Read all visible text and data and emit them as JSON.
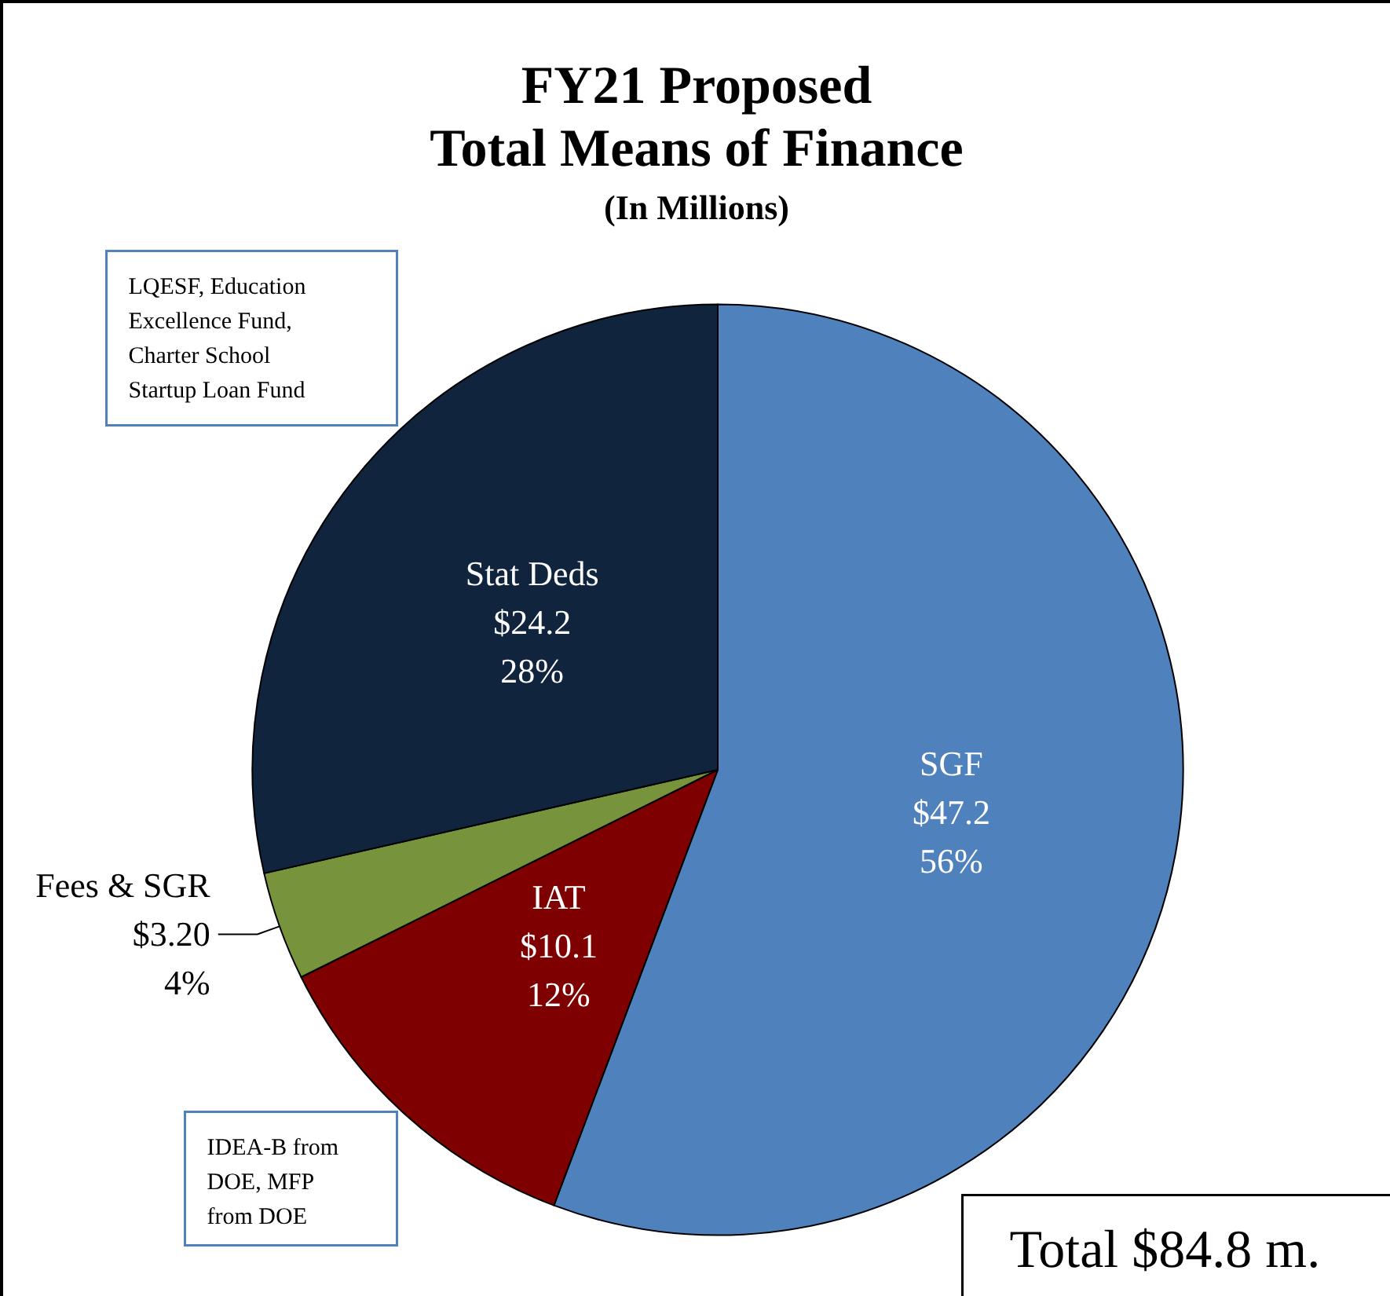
{
  "chart_data": {
    "type": "pie",
    "title": "FY21 Proposed\nTotal Means of Finance",
    "subtitle": "(In Millions)",
    "categories": [
      "SGF",
      "IAT",
      "Fees & SGR",
      "Stat Deds"
    ],
    "values": [
      47.2,
      10.1,
      3.2,
      24.2
    ],
    "value_labels": [
      "$47.2\n56%",
      "$10.1\n12%",
      "$3.20\n4%",
      "$24.2\n28%"
    ],
    "colors": [
      "#4f81bd",
      "#7f0000",
      "#77933c",
      "#10243e"
    ],
    "annotations": [
      "LQESF, Education\nExcellence Fund,\nCharter School\nStartup Loan Fund",
      "IDEA-B from\nDOE, MFP\nfrom DOE",
      "Total $84.8 m."
    ],
    "legend": false
  }
}
